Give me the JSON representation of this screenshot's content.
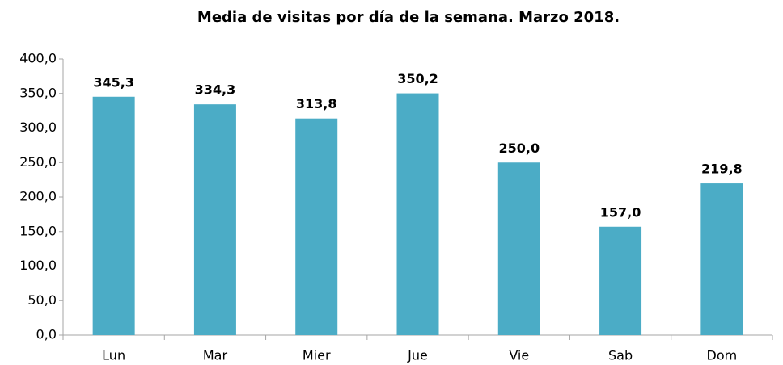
{
  "chart_data": {
    "type": "bar",
    "title": "Media de visitas por día de la semana. Marzo 2018.",
    "categories": [
      "Lun",
      "Mar",
      "Mier",
      "Jue",
      "Vie",
      "Sab",
      "Dom"
    ],
    "values": [
      345.3,
      334.3,
      313.8,
      350.2,
      250.0,
      157.0,
      219.8
    ],
    "value_labels": [
      "345,3",
      "334,3",
      "313,8",
      "350,2",
      "250,0",
      "157,0",
      "219,8"
    ],
    "color": "#4bacc6",
    "ylim": [
      0,
      400
    ],
    "yticks": [
      {
        "value": 0,
        "label": "0,0"
      },
      {
        "value": 50,
        "label": "50,0"
      },
      {
        "value": 100,
        "label": "100,0"
      },
      {
        "value": 150,
        "label": "150,0"
      },
      {
        "value": 200,
        "label": "200,0"
      },
      {
        "value": 250,
        "label": "250,0"
      },
      {
        "value": 300,
        "label": "300,0"
      },
      {
        "value": 350,
        "label": "350,0"
      },
      {
        "value": 400,
        "label": "400,0"
      }
    ],
    "grid": false
  }
}
